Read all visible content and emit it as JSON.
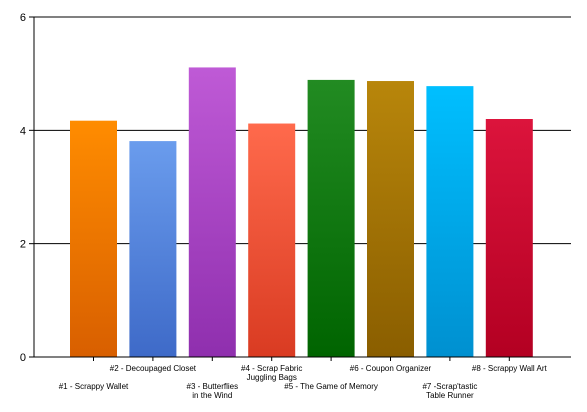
{
  "chart_data": {
    "type": "bar",
    "title": "",
    "xlabel": "",
    "ylabel": "",
    "ylim": [
      0,
      6
    ],
    "y_ticks": [
      "0",
      "2",
      "4",
      "6"
    ],
    "grid": "horizontal",
    "categories": [
      {
        "lines": [
          "#1 - Scrappy Wallet"
        ],
        "row": "lower"
      },
      {
        "lines": [
          "#2 - Decoupaged Closet"
        ],
        "row": "upper"
      },
      {
        "lines": [
          "#3 - Butterflies",
          "in the Wind"
        ],
        "row": "lower"
      },
      {
        "lines": [
          "#4 - Scrap Fabric",
          "Juggling Bags"
        ],
        "row": "upper"
      },
      {
        "lines": [
          "#5 - The Game of Memory"
        ],
        "row": "lower"
      },
      {
        "lines": [
          "#6 - Coupon Organizer"
        ],
        "row": "upper"
      },
      {
        "lines": [
          "#7 -Scrap'tastic",
          "Table Runner"
        ],
        "row": "lower"
      },
      {
        "lines": [
          "#8 - Scrappy Wall Art"
        ],
        "row": "upper"
      }
    ],
    "values": [
      4.17,
      3.81,
      5.11,
      4.12,
      4.89,
      4.87,
      4.78,
      4.2
    ],
    "colors": [
      [
        "#ff8c00",
        "#d85f00"
      ],
      [
        "#6a9ced",
        "#3e6ac8"
      ],
      [
        "#bf5ad6",
        "#8f2fae"
      ],
      [
        "#ff6a4c",
        "#d93b22"
      ],
      [
        "#228b22",
        "#006400"
      ],
      [
        "#b8860b",
        "#8a5e00"
      ],
      [
        "#00bfff",
        "#0090d0"
      ],
      [
        "#dc143c",
        "#b30022"
      ]
    ]
  }
}
